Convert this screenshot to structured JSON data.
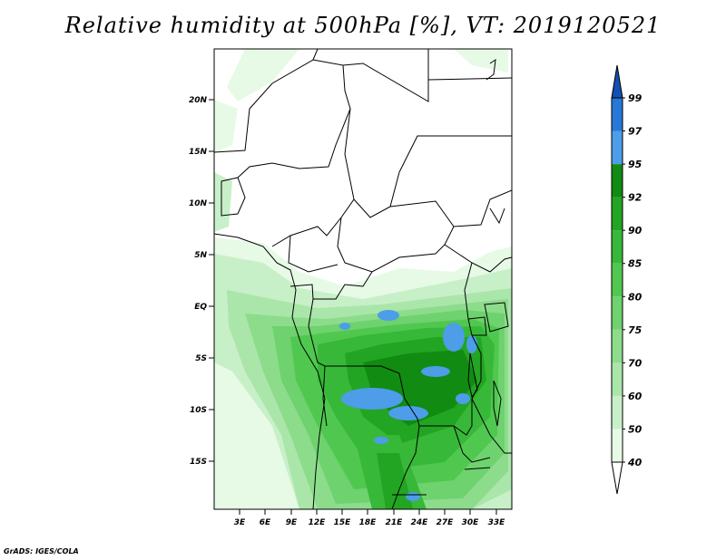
{
  "title": "Relative humidity at 500hPa [%], VT: 2019120521",
  "credit": "GrADS: IGES/COLA",
  "map": {
    "variable": "Relative humidity",
    "level": "500hPa",
    "units": "%",
    "valid_time": "2019120521",
    "lat_labels": [
      "20N",
      "15N",
      "10N",
      "5N",
      "EQ",
      "5S",
      "10S",
      "15S"
    ],
    "lon_labels": [
      "3E",
      "6E",
      "9E",
      "12E",
      "15E",
      "18E",
      "21E",
      "24E",
      "27E",
      "30E",
      "33E"
    ]
  },
  "colorbar": {
    "levels": [
      "40",
      "50",
      "60",
      "70",
      "75",
      "80",
      "85",
      "90",
      "92",
      "95",
      "97",
      "99"
    ],
    "colors": [
      "#e6fae6",
      "#c8f0c8",
      "#aae6aa",
      "#8cdc8c",
      "#6ed26e",
      "#50c850",
      "#38b838",
      "#22a522",
      "#118b11",
      "#4d9de8",
      "#2778d8",
      "#1250b4"
    ]
  }
}
